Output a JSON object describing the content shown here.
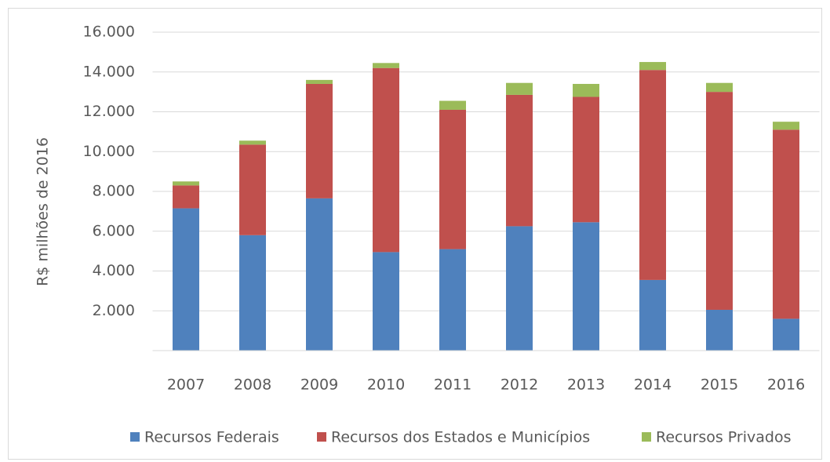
{
  "chart_data": {
    "type": "stacked_bar",
    "y_label": "R$ milhões de 2016",
    "categories": [
      "2007",
      "2008",
      "2009",
      "2010",
      "2011",
      "2012",
      "2013",
      "2014",
      "2015",
      "2016"
    ],
    "series": [
      {
        "name": "Recursos Federais",
        "color": "#4f81bd",
        "values": [
          7150,
          5800,
          7650,
          4950,
          5100,
          6250,
          6450,
          3550,
          2050,
          1600
        ]
      },
      {
        "name": "Recursos dos Estados e Municípios",
        "color": "#c0504d",
        "values": [
          1150,
          4550,
          5750,
          9250,
          7000,
          6600,
          6300,
          10550,
          10950,
          9500
        ]
      },
      {
        "name": "Recursos Privados",
        "color": "#9bbb59",
        "values": [
          200,
          200,
          200,
          250,
          450,
          600,
          650,
          400,
          450,
          400
        ]
      }
    ],
    "ylim": [
      0,
      16000
    ],
    "yticks": [
      {
        "value": 2000,
        "label": "2.000"
      },
      {
        "value": 4000,
        "label": "4.000"
      },
      {
        "value": 6000,
        "label": "6.000"
      },
      {
        "value": 8000,
        "label": "8.000"
      },
      {
        "value": 10000,
        "label": "10.000"
      },
      {
        "value": 12000,
        "label": "12.000"
      },
      {
        "value": 14000,
        "label": "14.000"
      },
      {
        "value": 16000,
        "label": "16.000"
      }
    ],
    "grid": true,
    "legend": "bottom"
  }
}
